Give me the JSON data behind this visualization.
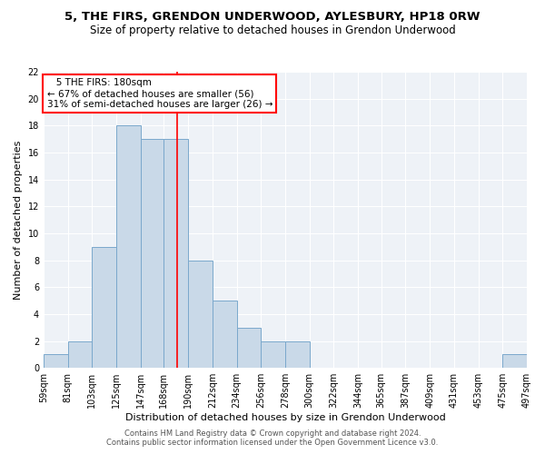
{
  "title": "5, THE FIRS, GRENDON UNDERWOOD, AYLESBURY, HP18 0RW",
  "subtitle": "Size of property relative to detached houses in Grendon Underwood",
  "xlabel": "Distribution of detached houses by size in Grendon Underwood",
  "ylabel": "Number of detached properties",
  "footer_line1": "Contains HM Land Registry data © Crown copyright and database right 2024.",
  "footer_line2": "Contains public sector information licensed under the Open Government Licence v3.0.",
  "annotation_line1": "5 THE FIRS: 180sqm",
  "annotation_line2": "← 67% of detached houses are smaller (56)",
  "annotation_line3": "31% of semi-detached houses are larger (26) →",
  "property_value": 180,
  "bar_color": "#c9d9e8",
  "bar_edge_color": "#7aa8cc",
  "vline_color": "red",
  "annotation_box_edge_color": "red",
  "background_color": "#eef2f7",
  "ylim": [
    0,
    22
  ],
  "yticks": [
    0,
    2,
    4,
    6,
    8,
    10,
    12,
    14,
    16,
    18,
    20,
    22
  ],
  "bin_edges": [
    59,
    81,
    103,
    125,
    147,
    168,
    190,
    212,
    234,
    256,
    278,
    300,
    322,
    344,
    365,
    387,
    409,
    431,
    453,
    475,
    497
  ],
  "bin_labels": [
    "59sqm",
    "81sqm",
    "103sqm",
    "125sqm",
    "147sqm",
    "168sqm",
    "190sqm",
    "212sqm",
    "234sqm",
    "256sqm",
    "278sqm",
    "300sqm",
    "322sqm",
    "344sqm",
    "365sqm",
    "387sqm",
    "409sqm",
    "431sqm",
    "453sqm",
    "475sqm",
    "497sqm"
  ],
  "counts": [
    1,
    2,
    9,
    18,
    17,
    17,
    8,
    5,
    3,
    2,
    2,
    0,
    0,
    0,
    0,
    0,
    0,
    0,
    0,
    1
  ],
  "title_fontsize": 9.5,
  "subtitle_fontsize": 8.5,
  "ylabel_fontsize": 8,
  "xlabel_fontsize": 8,
  "tick_fontsize": 7,
  "footer_fontsize": 6,
  "annotation_fontsize": 7.5
}
